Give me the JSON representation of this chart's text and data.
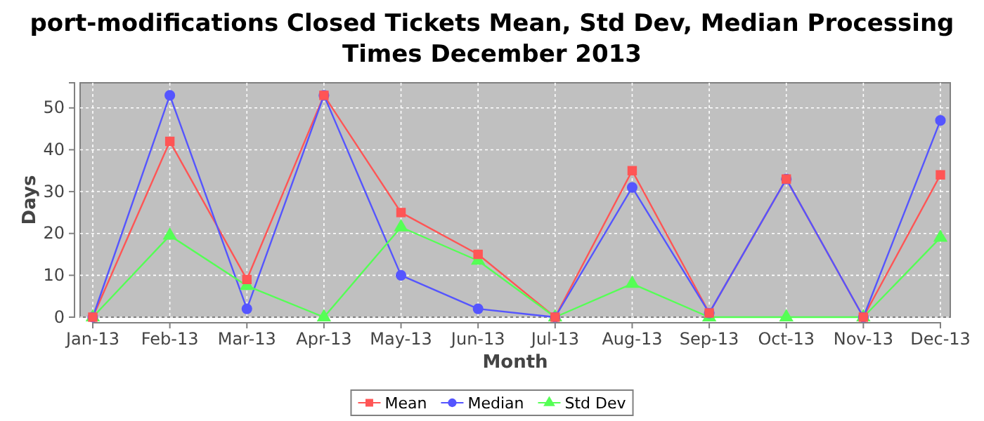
{
  "chart_data": {
    "type": "line",
    "title": "port-modifications Closed Tickets Mean, Std Dev, Median Processing Times December 2013",
    "xlabel": "Month",
    "ylabel": "Days",
    "categories": [
      "Jan-13",
      "Feb-13",
      "Mar-13",
      "Apr-13",
      "May-13",
      "Jun-13",
      "Jul-13",
      "Aug-13",
      "Sep-13",
      "Oct-13",
      "Nov-13",
      "Dec-13"
    ],
    "series": [
      {
        "name": "Mean",
        "color": "#ff5555",
        "marker": "square",
        "values": [
          0,
          42,
          9,
          53,
          25,
          15,
          0,
          35,
          1,
          33,
          0,
          34
        ]
      },
      {
        "name": "Median",
        "color": "#5555ff",
        "marker": "circle",
        "values": [
          0,
          53,
          2,
          53,
          10,
          2,
          0,
          31,
          1,
          33,
          0,
          47
        ]
      },
      {
        "name": "Std Dev",
        "color": "#55ff55",
        "marker": "triangle",
        "values": [
          0,
          19.5,
          7.5,
          0,
          21.5,
          13.5,
          0,
          8,
          0,
          0,
          0,
          19
        ]
      }
    ],
    "ylim": [
      0,
      56
    ],
    "yticks": [
      0,
      10,
      20,
      30,
      40,
      50
    ],
    "grid": true,
    "legend": "bottom"
  }
}
